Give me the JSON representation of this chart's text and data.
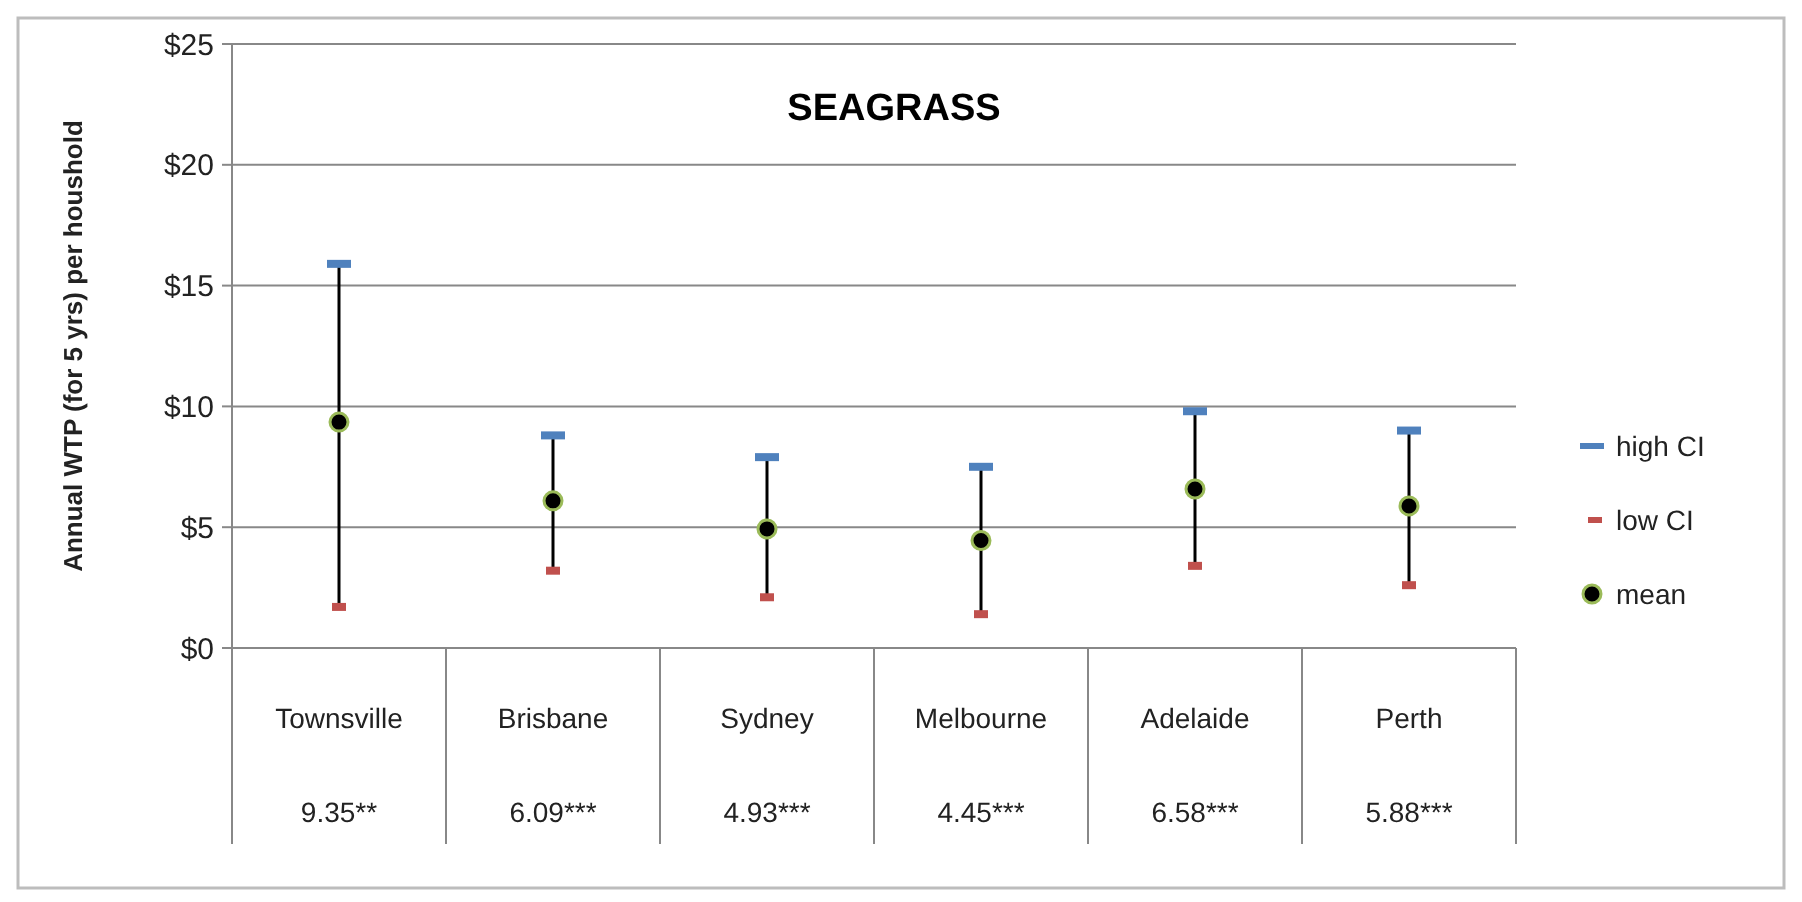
{
  "chart_data": {
    "type": "scatter",
    "title": "SEAGRASS",
    "ylabel": "Annual WTP (for 5 yrs) per houshold",
    "categories": [
      "Townsville",
      "Brisbane",
      "Sydney",
      "Melbourne",
      "Adelaide",
      "Perth"
    ],
    "series": [
      {
        "name": "high CI",
        "color": "#4f81bd",
        "values": [
          15.9,
          8.8,
          7.9,
          7.5,
          9.8,
          9.0
        ]
      },
      {
        "name": "low CI",
        "color": "#c0504d",
        "values": [
          1.7,
          3.2,
          2.1,
          1.4,
          3.4,
          2.6
        ]
      },
      {
        "name": "mean",
        "color": "#000000",
        "marker": "circle",
        "values": [
          9.35,
          6.09,
          4.93,
          4.45,
          6.58,
          5.88
        ],
        "value_labels": [
          "9.35**",
          "6.09***",
          "4.93***",
          "4.45***",
          "6.58***",
          "5.88***"
        ]
      }
    ],
    "ylim": [
      0,
      25
    ],
    "yticks": [
      {
        "value": 0,
        "label": "$0"
      },
      {
        "value": 5,
        "label": "$5"
      },
      {
        "value": 10,
        "label": "$10"
      },
      {
        "value": 15,
        "label": "$15"
      },
      {
        "value": 20,
        "label": "$20"
      },
      {
        "value": 25,
        "label": "$25"
      }
    ],
    "grid": "y",
    "legend": "right"
  }
}
